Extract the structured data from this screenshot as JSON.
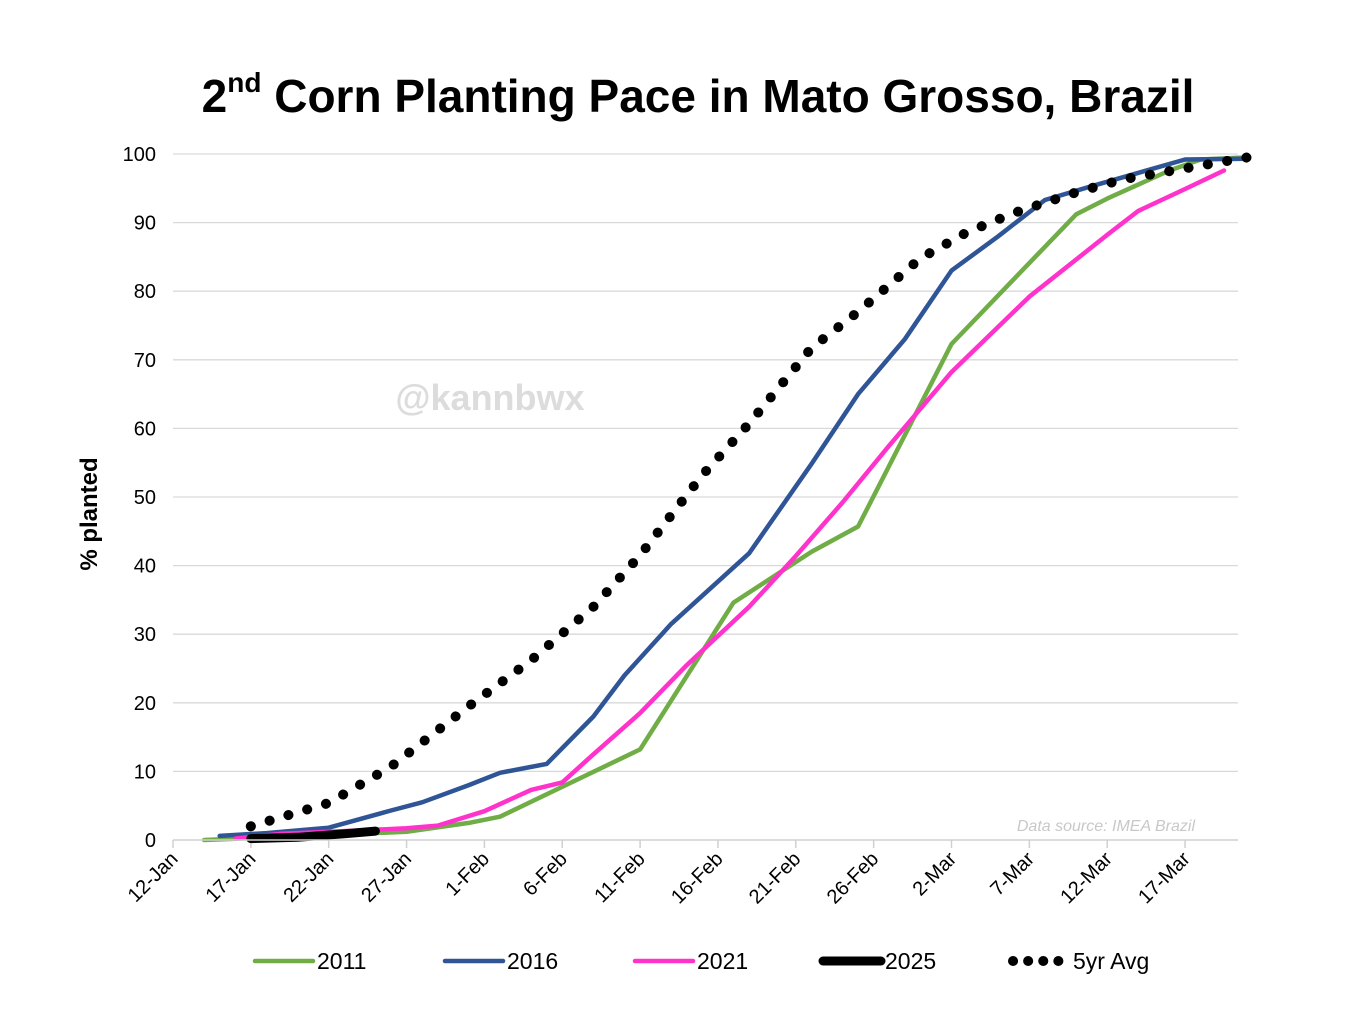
{
  "chart_data": {
    "type": "line",
    "title_main": "2",
    "title_sup": "nd",
    "title_rest": " Corn Planting Pace in Mato Grosso, Brazil",
    "ylabel": "% planted",
    "xlabel": "",
    "ylim": [
      0,
      100
    ],
    "y_ticks": [
      "0",
      "10",
      "20",
      "30",
      "40",
      "50",
      "60",
      "70",
      "80",
      "90",
      "100"
    ],
    "x_ticks": [
      {
        "day": 0,
        "label": "12-Jan"
      },
      {
        "day": 5,
        "label": "17-Jan"
      },
      {
        "day": 10,
        "label": "22-Jan"
      },
      {
        "day": 15,
        "label": "27-Jan"
      },
      {
        "day": 20,
        "label": "1-Feb"
      },
      {
        "day": 25,
        "label": "6-Feb"
      },
      {
        "day": 30,
        "label": "11-Feb"
      },
      {
        "day": 35,
        "label": "16-Feb"
      },
      {
        "day": 40,
        "label": "21-Feb"
      },
      {
        "day": 45,
        "label": "26-Feb"
      },
      {
        "day": 50,
        "label": "2-Mar"
      },
      {
        "day": 55,
        "label": "7-Mar"
      },
      {
        "day": 60,
        "label": "12-Mar"
      },
      {
        "day": 65,
        "label": "17-Mar"
      }
    ],
    "x_range_days": [
      0,
      69
    ],
    "grid": true,
    "watermark": "@kannbwx",
    "source_note": "Data source: IMEA Brazil",
    "series": [
      {
        "name": "2011",
        "color": "#70ad47",
        "style": "solid",
        "points": [
          [
            2,
            0
          ],
          [
            15,
            1.2
          ],
          [
            19,
            2.5
          ],
          [
            21,
            3.4
          ],
          [
            30,
            13.2
          ],
          [
            36,
            34.6
          ],
          [
            41,
            42
          ],
          [
            44,
            45.7
          ],
          [
            50,
            72.3
          ],
          [
            58,
            91.2
          ],
          [
            60,
            93.5
          ],
          [
            64,
            97.6
          ],
          [
            66,
            99.2
          ],
          [
            69,
            99.5
          ]
        ]
      },
      {
        "name": "2016",
        "color": "#2f5597",
        "style": "solid",
        "points": [
          [
            3,
            0.6
          ],
          [
            6,
            1.0
          ],
          [
            10,
            1.8
          ],
          [
            14,
            4.3
          ],
          [
            16,
            5.5
          ],
          [
            19,
            8.0
          ],
          [
            21,
            9.8
          ],
          [
            24,
            11.1
          ],
          [
            27,
            18
          ],
          [
            29,
            24
          ],
          [
            32,
            31.5
          ],
          [
            37,
            41.8
          ],
          [
            41,
            54.8
          ],
          [
            44,
            65
          ],
          [
            47,
            73
          ],
          [
            50,
            83
          ],
          [
            53,
            88
          ],
          [
            56,
            93.3
          ],
          [
            59,
            95.3
          ],
          [
            65,
            99.2
          ],
          [
            69,
            99.3
          ]
        ]
      },
      {
        "name": "2021",
        "color": "#ff33cc",
        "style": "solid",
        "points": [
          [
            4,
            0.2
          ],
          [
            7,
            0.9
          ],
          [
            11,
            1.3
          ],
          [
            15,
            1.7
          ],
          [
            17,
            2.1
          ],
          [
            20,
            4.2
          ],
          [
            23,
            7.3
          ],
          [
            25,
            8.4
          ],
          [
            27,
            12.5
          ],
          [
            30,
            18.5
          ],
          [
            33,
            25.5
          ],
          [
            37,
            34
          ],
          [
            40,
            41.4
          ],
          [
            43,
            49.2
          ],
          [
            46,
            57.5
          ],
          [
            50,
            68.2
          ],
          [
            55,
            79.2
          ],
          [
            60,
            88.2
          ],
          [
            62,
            91.7
          ],
          [
            65,
            94.9
          ],
          [
            67.5,
            97.6
          ]
        ]
      },
      {
        "name": "2025",
        "color": "#000000",
        "style": "thick",
        "points": [
          [
            5,
            0.2
          ],
          [
            8,
            0.4
          ],
          [
            11,
            0.9
          ],
          [
            13,
            1.3
          ]
        ]
      },
      {
        "name": "5yr Avg",
        "color": "#000000",
        "style": "dotted",
        "points": [
          [
            5,
            2.0
          ],
          [
            10,
            5.4
          ],
          [
            14,
            10.7
          ],
          [
            19,
            19.5
          ],
          [
            23,
            26.2
          ],
          [
            27,
            34.0
          ],
          [
            30,
            41.5
          ],
          [
            34,
            53.2
          ],
          [
            37,
            60.7
          ],
          [
            41,
            71.7
          ],
          [
            44,
            77.0
          ],
          [
            48,
            84.8
          ],
          [
            51,
            88.6
          ],
          [
            54,
            91.4
          ],
          [
            58,
            94.4
          ],
          [
            61,
            96.3
          ],
          [
            65,
            97.9
          ],
          [
            69,
            99.5
          ]
        ]
      }
    ]
  }
}
